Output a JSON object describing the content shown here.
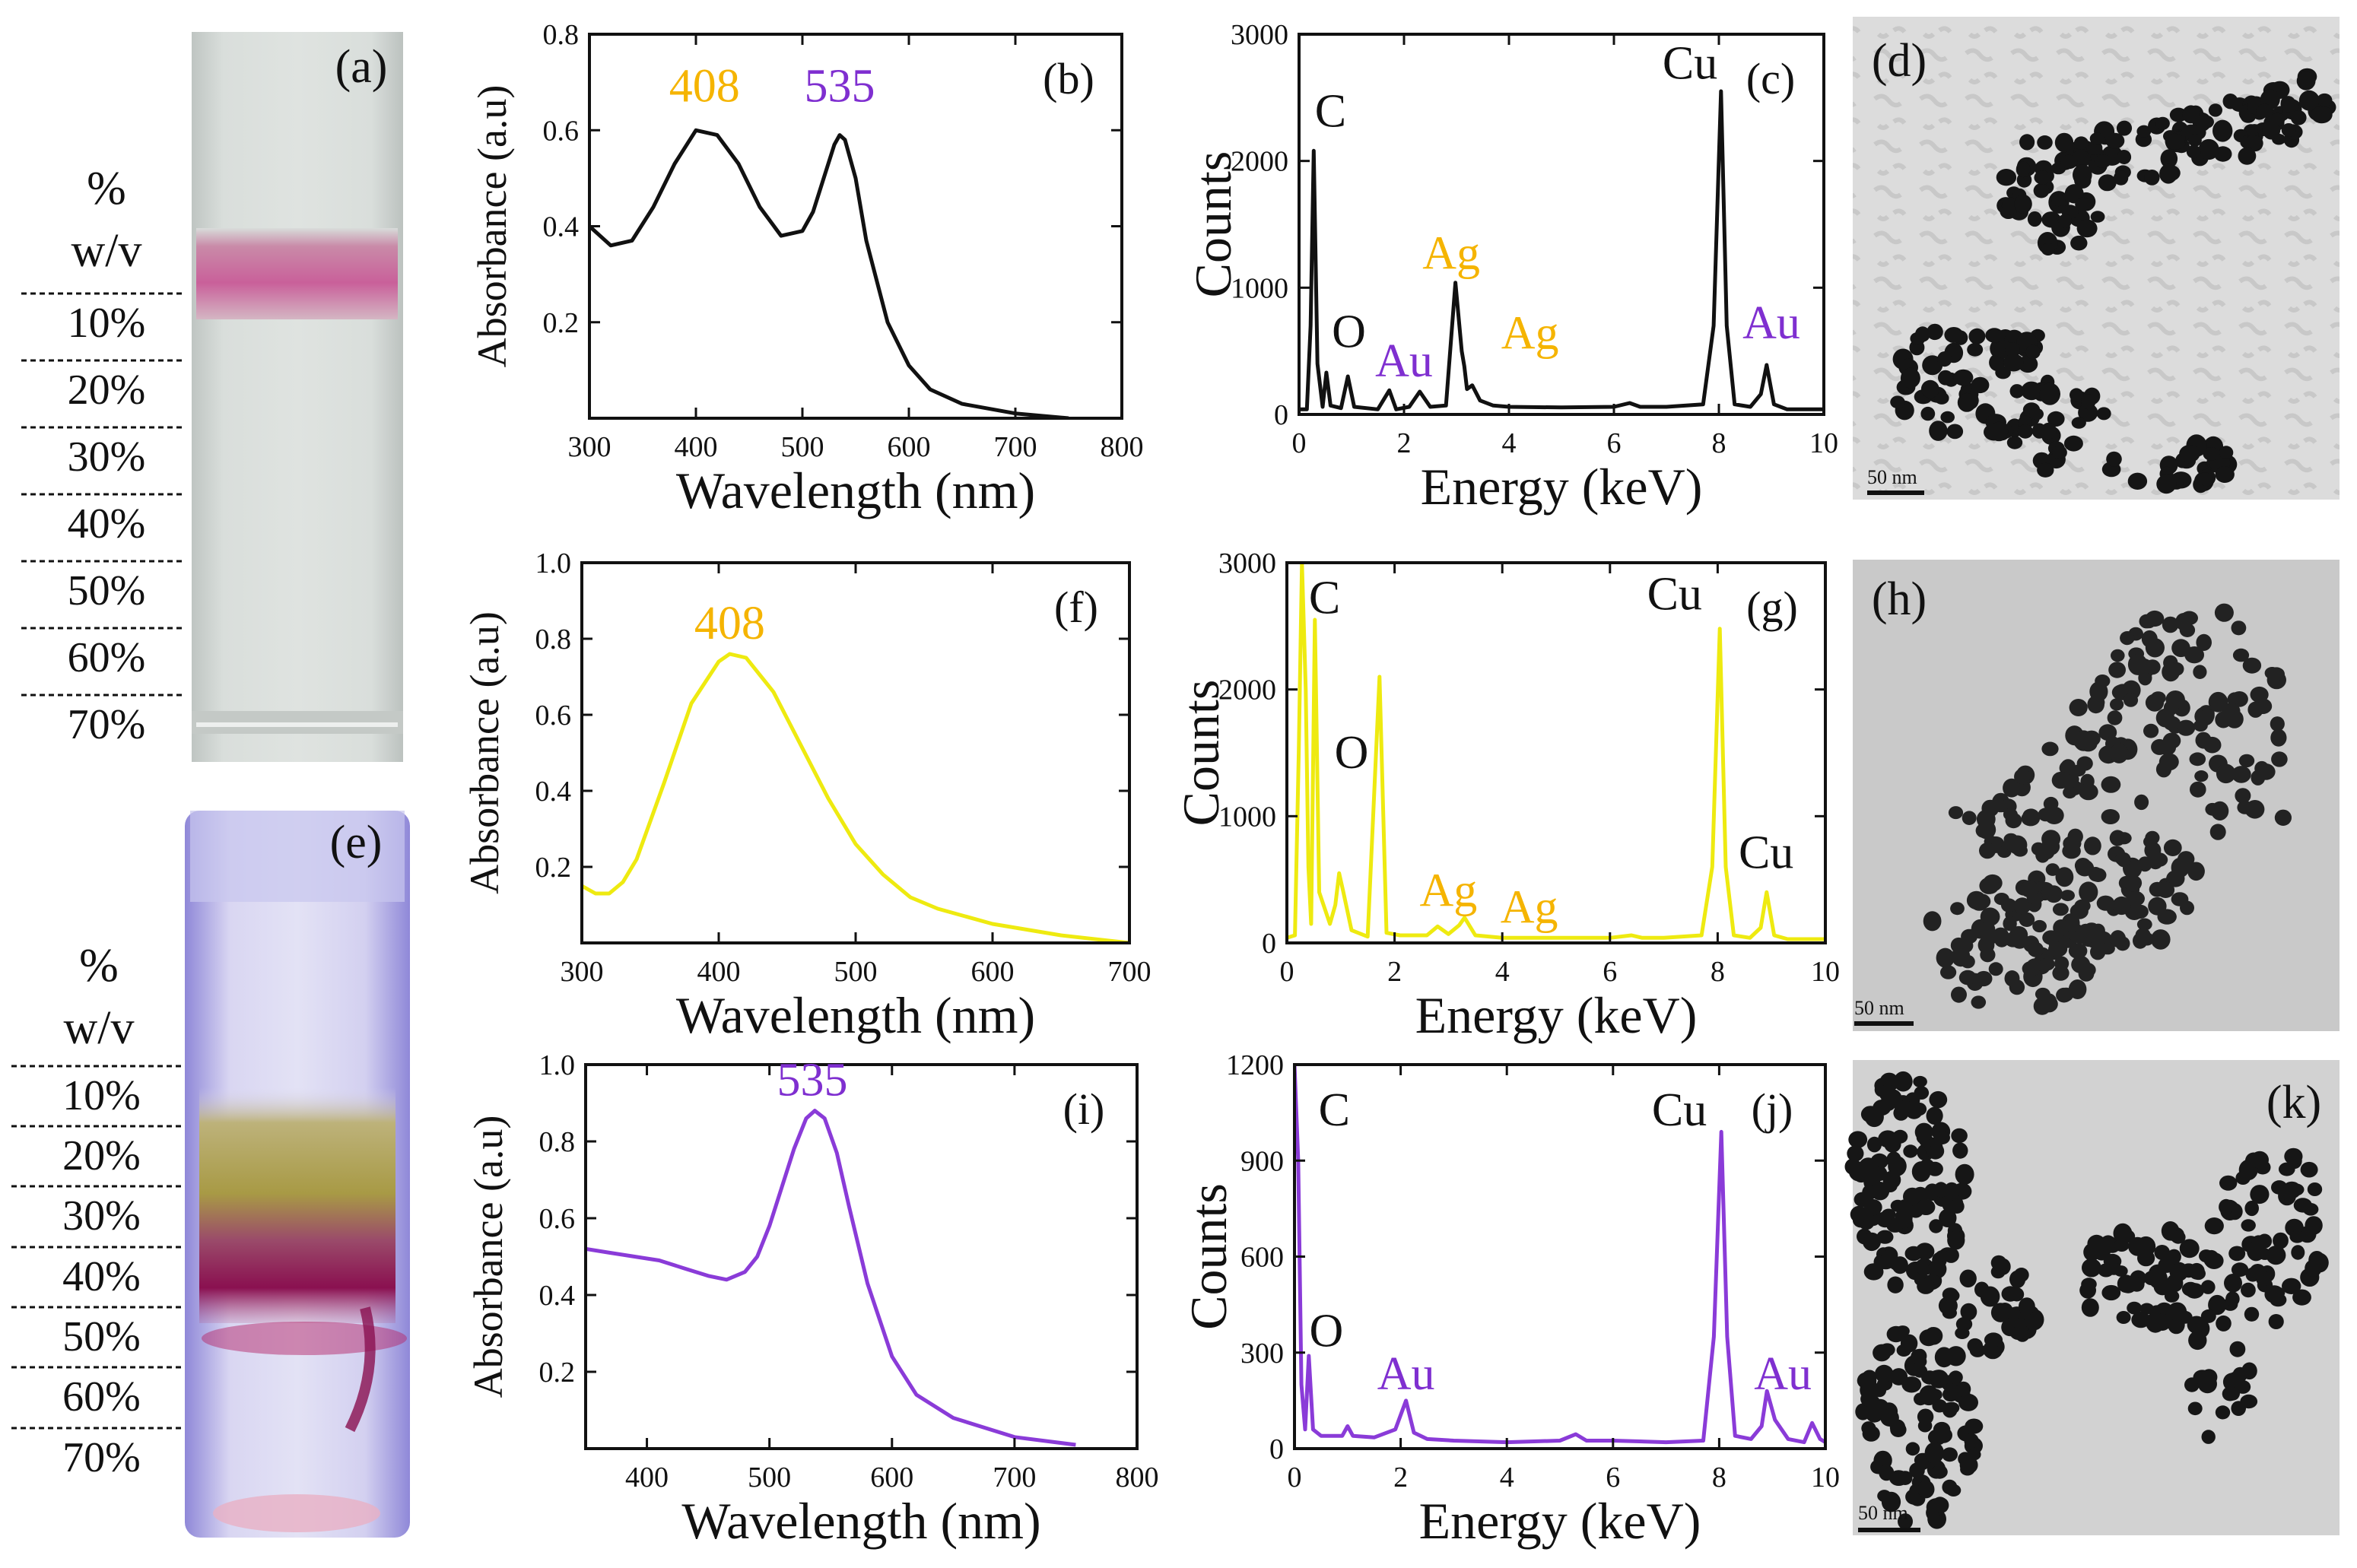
{
  "colors": {
    "black": "#111111",
    "silver": "#f5b400",
    "silver_line": "#eeea10",
    "gold": "#7f2fd0",
    "gold_line": "#8a3bd8",
    "vial_a_band": "#c9609a",
    "vial_e_band": "#a0205a",
    "vial_e_yellow": "#b8a040"
  },
  "gradient_scale": {
    "unit_line1": "%",
    "unit_line2": "w/v",
    "levels": [
      "10%",
      "20%",
      "30%",
      "40%",
      "50%",
      "60%",
      "70%"
    ]
  },
  "photos": {
    "a_label": "(a)",
    "e_label": "(e)",
    "d_label": "(d)",
    "h_label": "(h)",
    "k_label": "(k)",
    "scale_bar": "50 nm"
  },
  "chart_data": [
    {
      "id": "b",
      "panel_label": "(b)",
      "type": "line",
      "xlabel": "Wavelength (nm)",
      "ylabel": "Absorbance (a.u)",
      "xlim": [
        300,
        800
      ],
      "ylim": [
        0.0,
        0.8
      ],
      "xticks": [
        300,
        400,
        500,
        600,
        700,
        800
      ],
      "yticks": [
        0.2,
        0.4,
        0.6,
        0.8
      ],
      "ytick_labels": [
        "0.2",
        "0.4",
        "0.6",
        "0.8"
      ],
      "series": [
        {
          "color": "#111111",
          "x": [
            300,
            320,
            340,
            360,
            380,
            400,
            420,
            440,
            460,
            480,
            500,
            510,
            520,
            530,
            535,
            540,
            550,
            560,
            580,
            600,
            620,
            650,
            700,
            750
          ],
          "y": [
            0.4,
            0.36,
            0.37,
            0.44,
            0.53,
            0.6,
            0.59,
            0.53,
            0.44,
            0.38,
            0.39,
            0.43,
            0.5,
            0.57,
            0.59,
            0.58,
            0.5,
            0.37,
            0.2,
            0.11,
            0.06,
            0.03,
            0.01,
            0.0
          ]
        }
      ],
      "annotations": [
        {
          "text": "408",
          "x": 408,
          "y": 0.66,
          "color": "#f5b400"
        },
        {
          "text": "535",
          "x": 535,
          "y": 0.66,
          "color": "#7f2fd0"
        }
      ]
    },
    {
      "id": "c",
      "panel_label": "(c)",
      "type": "line",
      "xlabel": "Energy (keV)",
      "ylabel": "Counts",
      "xlim": [
        0,
        10
      ],
      "ylim": [
        0,
        3000
      ],
      "xticks": [
        0,
        2,
        4,
        6,
        8,
        10
      ],
      "yticks": [
        0,
        1000,
        2000,
        3000
      ],
      "ytick_labels": [
        "0",
        "1000",
        "2000",
        "3000"
      ],
      "series": [
        {
          "color": "#111111",
          "x": [
            0,
            0.15,
            0.22,
            0.28,
            0.35,
            0.45,
            0.52,
            0.6,
            0.8,
            0.93,
            1.05,
            1.5,
            1.72,
            1.85,
            2.1,
            2.3,
            2.5,
            2.8,
            2.98,
            3.1,
            3.15,
            3.2,
            3.3,
            3.45,
            3.7,
            4.0,
            5.0,
            6.0,
            6.3,
            6.5,
            7.0,
            7.7,
            7.9,
            8.04,
            8.15,
            8.3,
            8.6,
            8.8,
            8.91,
            9.05,
            9.3,
            10
          ],
          "y": [
            40,
            40,
            700,
            2080,
            400,
            60,
            330,
            70,
            50,
            300,
            60,
            40,
            190,
            40,
            60,
            180,
            60,
            70,
            1040,
            500,
            380,
            200,
            230,
            110,
            70,
            60,
            55,
            60,
            90,
            60,
            60,
            80,
            700,
            2550,
            700,
            80,
            60,
            160,
            390,
            80,
            40,
            40
          ]
        }
      ],
      "annotations": [
        {
          "text": "C",
          "x": 0.6,
          "y": 2270,
          "color": "#111111"
        },
        {
          "text": "O",
          "x": 0.95,
          "y": 530,
          "color": "#111111"
        },
        {
          "text": "Au",
          "x": 2.0,
          "y": 300,
          "color": "#7f2fd0"
        },
        {
          "text": "Ag",
          "x": 2.9,
          "y": 1150,
          "color": "#f5b400"
        },
        {
          "text": "Ag",
          "x": 4.4,
          "y": 520,
          "color": "#f5b400"
        },
        {
          "text": "Cu",
          "x": 7.45,
          "y": 2650,
          "color": "#111111"
        },
        {
          "text": "Au",
          "x": 9.0,
          "y": 600,
          "color": "#7f2fd0"
        }
      ]
    },
    {
      "id": "f",
      "panel_label": "(f)",
      "type": "line",
      "xlabel": "Wavelength (nm)",
      "ylabel": "Absorbance (a.u)",
      "xlim": [
        300,
        700
      ],
      "ylim": [
        0.0,
        1.0
      ],
      "xticks": [
        300,
        400,
        500,
        600,
        700
      ],
      "yticks": [
        0.2,
        0.4,
        0.6,
        0.8,
        1.0
      ],
      "ytick_labels": [
        "0.2",
        "0.4",
        "0.6",
        "0.8",
        "1.0"
      ],
      "series": [
        {
          "color": "#eeea10",
          "x": [
            300,
            310,
            320,
            330,
            340,
            360,
            380,
            400,
            408,
            420,
            440,
            460,
            480,
            500,
            520,
            540,
            560,
            580,
            600,
            650,
            700
          ],
          "y": [
            0.15,
            0.13,
            0.13,
            0.16,
            0.22,
            0.42,
            0.63,
            0.74,
            0.76,
            0.75,
            0.66,
            0.52,
            0.38,
            0.26,
            0.18,
            0.12,
            0.09,
            0.07,
            0.05,
            0.02,
            0.0
          ]
        }
      ],
      "annotations": [
        {
          "text": "408",
          "x": 408,
          "y": 0.8,
          "color": "#f5b400"
        }
      ]
    },
    {
      "id": "g",
      "panel_label": "(g)",
      "type": "line",
      "xlabel": "Energy (keV)",
      "ylabel": "Counts",
      "xlim": [
        0,
        10
      ],
      "ylim": [
        0,
        3000
      ],
      "xticks": [
        0,
        2,
        4,
        6,
        8,
        10
      ],
      "yticks": [
        0,
        1000,
        2000,
        3000
      ],
      "ytick_labels": [
        "0",
        "1000",
        "2000",
        "3000"
      ],
      "series": [
        {
          "color": "#eeea10",
          "x": [
            0,
            0.15,
            0.22,
            0.28,
            0.35,
            0.4,
            0.45,
            0.52,
            0.6,
            0.8,
            0.9,
            0.97,
            1.05,
            1.2,
            1.5,
            1.72,
            1.85,
            2.1,
            2.6,
            2.8,
            3.0,
            3.2,
            3.3,
            3.5,
            4.0,
            5.0,
            6.0,
            6.4,
            6.6,
            7.0,
            7.7,
            7.9,
            8.04,
            8.15,
            8.3,
            8.6,
            8.8,
            8.91,
            9.05,
            9.3,
            10
          ],
          "y": [
            40,
            60,
            1500,
            3000,
            2000,
            600,
            150,
            2550,
            400,
            150,
            300,
            550,
            400,
            100,
            50,
            2100,
            80,
            60,
            60,
            130,
            70,
            140,
            200,
            60,
            40,
            40,
            40,
            60,
            40,
            40,
            60,
            600,
            2480,
            600,
            60,
            40,
            120,
            400,
            60,
            30,
            30
          ]
        }
      ],
      "annotations": [
        {
          "text": "C",
          "x": 0.7,
          "y": 2600,
          "color": "#111111"
        },
        {
          "text": "O",
          "x": 1.2,
          "y": 1380,
          "color": "#111111"
        },
        {
          "text": "Ag",
          "x": 3.0,
          "y": 290,
          "color": "#f5b400"
        },
        {
          "text": "Ag",
          "x": 4.5,
          "y": 160,
          "color": "#f5b400"
        },
        {
          "text": "Cu",
          "x": 7.2,
          "y": 2630,
          "color": "#111111"
        },
        {
          "text": "Cu",
          "x": 8.9,
          "y": 590,
          "color": "#111111"
        }
      ]
    },
    {
      "id": "i",
      "panel_label": "(i)",
      "type": "line",
      "xlabel": "Wavelength (nm)",
      "ylabel": "Absorbance (a.u)",
      "xlim": [
        350,
        800
      ],
      "ylim": [
        0.0,
        1.0
      ],
      "xticks": [
        400,
        500,
        600,
        700,
        800
      ],
      "yticks": [
        0.2,
        0.4,
        0.6,
        0.8,
        1.0
      ],
      "ytick_labels": [
        "0.2",
        "0.4",
        "0.6",
        "0.8",
        "1.0"
      ],
      "series": [
        {
          "color": "#8a3bd8",
          "x": [
            350,
            370,
            390,
            410,
            430,
            450,
            465,
            480,
            490,
            500,
            510,
            520,
            530,
            537,
            545,
            555,
            565,
            580,
            600,
            620,
            650,
            700,
            750
          ],
          "y": [
            0.52,
            0.51,
            0.5,
            0.49,
            0.47,
            0.45,
            0.44,
            0.46,
            0.5,
            0.58,
            0.68,
            0.78,
            0.86,
            0.88,
            0.86,
            0.77,
            0.63,
            0.43,
            0.24,
            0.14,
            0.08,
            0.03,
            0.01
          ]
        }
      ],
      "annotations": [
        {
          "text": "535",
          "x": 535,
          "y": 0.92,
          "color": "#7f2fd0"
        }
      ]
    },
    {
      "id": "j",
      "panel_label": "(j)",
      "type": "line",
      "xlabel": "Energy (keV)",
      "ylabel": "Counts",
      "xlim": [
        0,
        10
      ],
      "ylim": [
        0,
        1200
      ],
      "xticks": [
        0,
        2,
        4,
        6,
        8,
        10
      ],
      "yticks": [
        0,
        300,
        600,
        900,
        1200
      ],
      "ytick_labels": [
        "0",
        "300",
        "600",
        "900",
        "1200"
      ],
      "series": [
        {
          "color": "#8a3bd8",
          "x": [
            -0.1,
            0.0,
            0.07,
            0.13,
            0.2,
            0.27,
            0.35,
            0.5,
            0.9,
            1.0,
            1.1,
            1.5,
            1.9,
            2.1,
            2.25,
            2.5,
            3.0,
            4.0,
            5.0,
            5.3,
            5.5,
            6.0,
            7.0,
            7.7,
            7.9,
            8.04,
            8.15,
            8.3,
            8.6,
            8.8,
            8.9,
            9.05,
            9.3,
            9.6,
            9.75,
            9.9,
            10
          ],
          "y": [
            30,
            1200,
            900,
            200,
            60,
            290,
            60,
            40,
            40,
            70,
            40,
            35,
            60,
            150,
            50,
            30,
            25,
            20,
            25,
            45,
            25,
            25,
            20,
            25,
            350,
            990,
            350,
            40,
            30,
            70,
            180,
            90,
            30,
            20,
            80,
            30,
            20
          ]
        }
      ],
      "annotations": [
        {
          "text": "C",
          "x": 0.75,
          "y": 1010,
          "color": "#111111"
        },
        {
          "text": "O",
          "x": 0.6,
          "y": 320,
          "color": "#111111"
        },
        {
          "text": "Au",
          "x": 2.1,
          "y": 185,
          "color": "#7f2fd0"
        },
        {
          "text": "Cu",
          "x": 7.25,
          "y": 1010,
          "color": "#111111"
        },
        {
          "text": "Au",
          "x": 9.2,
          "y": 185,
          "color": "#7f2fd0"
        }
      ]
    }
  ]
}
